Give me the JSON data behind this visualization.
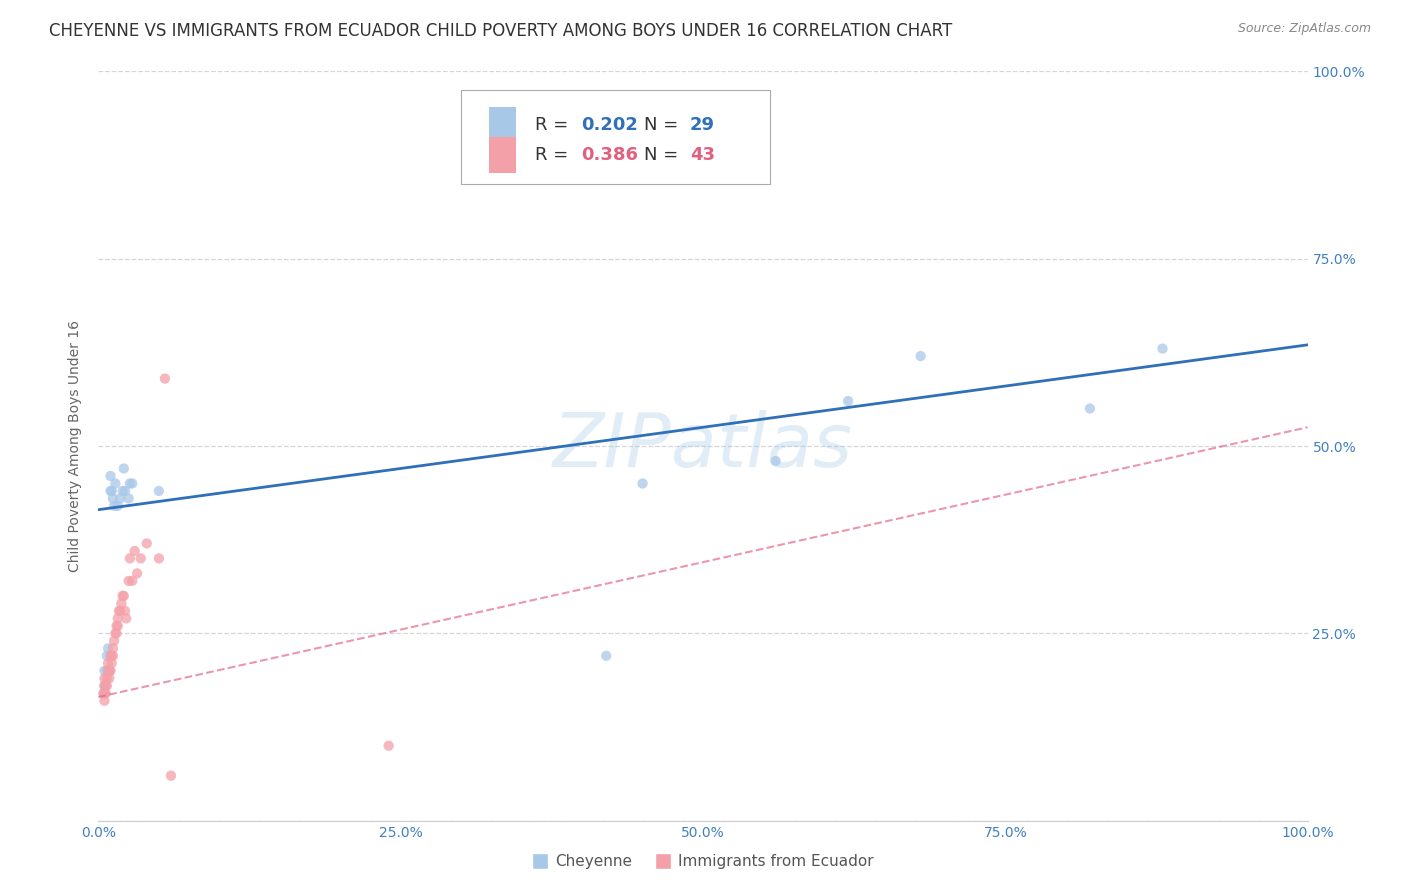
{
  "title": "CHEYENNE VS IMMIGRANTS FROM ECUADOR CHILD POVERTY AMONG BOYS UNDER 16 CORRELATION CHART",
  "source": "Source: ZipAtlas.com",
  "ylabel": "Child Poverty Among Boys Under 16",
  "watermark": "ZIPatlas",
  "cheyenne_R": 0.202,
  "cheyenne_N": 29,
  "ecuador_R": 0.386,
  "ecuador_N": 43,
  "cheyenne_color": "#a8c8e8",
  "ecuador_color": "#f4a0a8",
  "cheyenne_line_color": "#3070b8",
  "ecuador_line_color": "#e06080",
  "cheyenne_x": [
    0.005,
    0.005,
    0.005,
    0.007,
    0.007,
    0.008,
    0.009,
    0.01,
    0.01,
    0.011,
    0.012,
    0.013,
    0.014,
    0.016,
    0.018,
    0.02,
    0.021,
    0.022,
    0.025,
    0.026,
    0.028,
    0.05,
    0.42,
    0.45,
    0.56,
    0.62,
    0.68,
    0.82,
    0.88
  ],
  "cheyenne_y": [
    0.2,
    0.18,
    0.17,
    0.2,
    0.22,
    0.23,
    0.2,
    0.44,
    0.46,
    0.44,
    0.43,
    0.42,
    0.45,
    0.42,
    0.43,
    0.44,
    0.47,
    0.44,
    0.43,
    0.45,
    0.45,
    0.44,
    0.22,
    0.45,
    0.48,
    0.56,
    0.62,
    0.55,
    0.63
  ],
  "ecuador_x": [
    0.004,
    0.005,
    0.005,
    0.005,
    0.005,
    0.006,
    0.006,
    0.007,
    0.007,
    0.008,
    0.008,
    0.009,
    0.009,
    0.01,
    0.01,
    0.011,
    0.011,
    0.012,
    0.012,
    0.013,
    0.014,
    0.015,
    0.015,
    0.016,
    0.016,
    0.017,
    0.018,
    0.019,
    0.02,
    0.021,
    0.022,
    0.023,
    0.025,
    0.026,
    0.028,
    0.03,
    0.032,
    0.035,
    0.04,
    0.05,
    0.055,
    0.06,
    0.24
  ],
  "ecuador_y": [
    0.17,
    0.16,
    0.17,
    0.18,
    0.19,
    0.17,
    0.18,
    0.18,
    0.19,
    0.2,
    0.21,
    0.19,
    0.2,
    0.22,
    0.2,
    0.21,
    0.22,
    0.22,
    0.23,
    0.24,
    0.25,
    0.25,
    0.26,
    0.26,
    0.27,
    0.28,
    0.28,
    0.29,
    0.3,
    0.3,
    0.28,
    0.27,
    0.32,
    0.35,
    0.32,
    0.36,
    0.33,
    0.35,
    0.37,
    0.35,
    0.59,
    0.06,
    0.1
  ],
  "cheyenne_line_x": [
    0.0,
    1.0
  ],
  "cheyenne_line_y": [
    0.415,
    0.635
  ],
  "ecuador_line_x": [
    0.0,
    1.0
  ],
  "ecuador_line_y": [
    0.165,
    0.525
  ],
  "xlim": [
    0.0,
    1.0
  ],
  "ylim": [
    0.0,
    1.0
  ],
  "xticks": [
    0.0,
    0.25,
    0.5,
    0.75,
    1.0
  ],
  "yticks": [
    0.0,
    0.25,
    0.5,
    0.75,
    1.0
  ],
  "xticklabels": [
    "0.0%",
    "25.0%",
    "50.0%",
    "75.0%",
    "100.0%"
  ],
  "right_yticklabels": [
    "",
    "25.0%",
    "50.0%",
    "75.0%",
    "100.0%"
  ],
  "background_color": "#ffffff",
  "grid_color": "#cccccc",
  "tick_color": "#4080c0",
  "title_fontsize": 12,
  "axis_label_fontsize": 10,
  "tick_fontsize": 10,
  "legend_fontsize": 13,
  "scatter_size": 55
}
